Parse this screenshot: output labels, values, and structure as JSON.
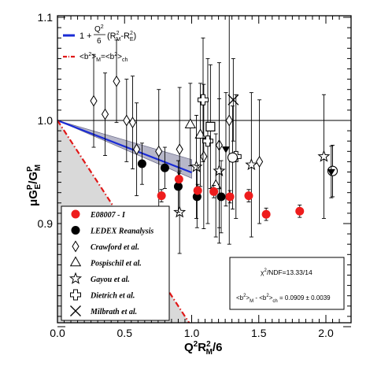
{
  "chart_data": {
    "type": "scatter",
    "xlim": [
      0.0,
      2.1
    ],
    "ylim": [
      0.8,
      1.1
    ],
    "x_ticks": [
      "0.0",
      "0.5",
      "1.0",
      "1.5",
      "2.0"
    ],
    "y_ticks": [
      "0.9",
      "1.0",
      "1.1"
    ],
    "xlabel": {
      "base": "Q",
      "sup1": "2",
      "mid": "R",
      "sup2": "2",
      "sub2": "M",
      "tail": "/6"
    },
    "ylabel": {
      "pre": "μG",
      "sup1": "P",
      "sub1": "E",
      "slash": "/G",
      "sup2": "P",
      "sub2": "M"
    },
    "line_legend": [
      {
        "kind": "fit",
        "color": "#1a2bd6",
        "formula": {
          "lead": "1 + ",
          "num": "Q",
          "num_sup": "2",
          "den": "6",
          "tail": "(R",
          "s1": "2",
          "b1": "M",
          "mid": "-R",
          "s2": "2",
          "b2": "E",
          "close": ")"
        }
      },
      {
        "kind": "constraint",
        "color": "#e01818",
        "label": {
          "a": "<b",
          "a_sup": "2",
          "a_close": ">",
          "a_sub": "M",
          "eq": "=<b",
          "b_sup": "2",
          "b_close": ">",
          "b_sub": "ch"
        }
      }
    ],
    "marker_legend": [
      {
        "marker": "filled-circle-red",
        "label": "E08007 - I"
      },
      {
        "marker": "filled-circle-black",
        "label": "LEDEX Reanalysis"
      },
      {
        "marker": "diamond",
        "label": "Crawford et al."
      },
      {
        "marker": "triangle",
        "label": "Pospischil et al."
      },
      {
        "marker": "star",
        "label": "Gayou et al."
      },
      {
        "marker": "cross",
        "label": "Dietrich et al."
      },
      {
        "marker": "x",
        "label": "Milbrath et al."
      }
    ],
    "stats": {
      "chi2": {
        "pre": "χ",
        "sup": "2",
        "rest": "/NDF=13.33/14"
      },
      "diff": {
        "a": "<b",
        "a_sup": "2",
        "a_close": ">",
        "a_sub": "M",
        "mid": " - <b",
        "b_sup": "2",
        "b_close": ">",
        "b_sub": "ch",
        "value": " = 0.0909 ± 0.0039"
      }
    },
    "reference_line": 1.0,
    "fit_line": [
      [
        0.0,
        1.0
      ],
      [
        1.0,
        0.9495
      ]
    ],
    "fit_band_upper": [
      [
        0.0,
        1.0
      ],
      [
        1.0,
        0.962
      ]
    ],
    "fit_band_lower": [
      [
        0.0,
        1.0
      ],
      [
        1.0,
        0.944
      ]
    ],
    "constraint_line": [
      [
        0.0,
        1.0
      ],
      [
        1.0,
        0.8
      ]
    ],
    "shaded_region": [
      [
        0.0,
        1.0
      ],
      [
        1.0,
        0.8
      ],
      [
        0.0,
        0.8
      ]
    ],
    "series": [
      {
        "name": "E08007 - I",
        "marker": "filled-circle-red",
        "color": "#ee1c1c",
        "points": [
          [
            0.775,
            0.927,
            0.006
          ],
          [
            0.905,
            0.943,
            0.006
          ],
          [
            1.045,
            0.932,
            0.006
          ],
          [
            1.165,
            0.931,
            0.006
          ],
          [
            1.285,
            0.926,
            0.006
          ],
          [
            1.425,
            0.927,
            0.006
          ],
          [
            1.555,
            0.909,
            0.006
          ],
          [
            1.805,
            0.912,
            0.006
          ]
        ]
      },
      {
        "name": "LEDEX Reanalysis",
        "marker": "filled-circle-black",
        "color": "#000000",
        "points": [
          [
            0.63,
            0.958,
            0.02
          ],
          [
            0.8,
            0.954,
            0.02
          ],
          [
            0.9,
            0.936,
            0.025
          ],
          [
            1.04,
            0.926,
            0.03
          ],
          [
            1.22,
            0.926,
            0.035
          ]
        ]
      },
      {
        "name": "Crawford et al.",
        "marker": "diamond",
        "points": [
          [
            0.27,
            1.019,
            0.045
          ],
          [
            0.355,
            1.006,
            0.04
          ],
          [
            0.44,
            1.038,
            0.04
          ],
          [
            0.515,
            1.0,
            0.04
          ],
          [
            0.56,
            0.998,
            0.045
          ],
          [
            0.59,
            0.972,
            0.045
          ],
          [
            0.755,
            0.97,
            0.06
          ],
          [
            0.91,
            0.972,
            0.06
          ],
          [
            1.09,
            0.965,
            0.07
          ],
          [
            1.205,
            0.976,
            0.08
          ],
          [
            1.28,
            1.0,
            0.12
          ],
          [
            1.505,
            0.96,
            0.06
          ]
        ]
      },
      {
        "name": "Pospischil et al.",
        "marker": "triangle",
        "points": [
          [
            0.99,
            0.996,
            0.04
          ],
          [
            1.065,
            0.986,
            0.05
          ],
          [
            1.18,
            0.937,
            0.05
          ]
        ]
      },
      {
        "name": "Gayou et al.",
        "marker": "star",
        "points": [
          [
            0.91,
            0.911,
            0.04
          ],
          [
            1.035,
            0.955,
            0.05
          ],
          [
            1.205,
            0.951,
            0.07
          ],
          [
            1.445,
            0.957,
            0.07
          ],
          [
            1.985,
            0.965,
            0.06
          ]
        ]
      },
      {
        "name": "Dietrich et al.",
        "marker": "cross",
        "points": [
          [
            1.12,
            0.98,
            0.08
          ],
          [
            1.085,
            1.02,
            0.06
          ],
          [
            1.33,
            0.965,
            0.06
          ]
        ]
      },
      {
        "name": "Milbrath et al.",
        "marker": "x",
        "points": [
          [
            1.31,
            1.02,
            0.04
          ]
        ]
      },
      {
        "name": "",
        "marker": "open-square",
        "points": [
          [
            1.14,
            0.994,
            0.06
          ]
        ]
      },
      {
        "name": "",
        "marker": "open-circle",
        "points": [
          [
            1.305,
            0.964,
            0.05
          ],
          [
            2.05,
            0.951,
            0.025
          ]
        ]
      },
      {
        "name": "",
        "marker": "filled-triangle-down",
        "points": [
          [
            1.255,
            0.972,
            0.055
          ],
          [
            2.04,
            0.95,
            0.025
          ]
        ]
      }
    ]
  }
}
